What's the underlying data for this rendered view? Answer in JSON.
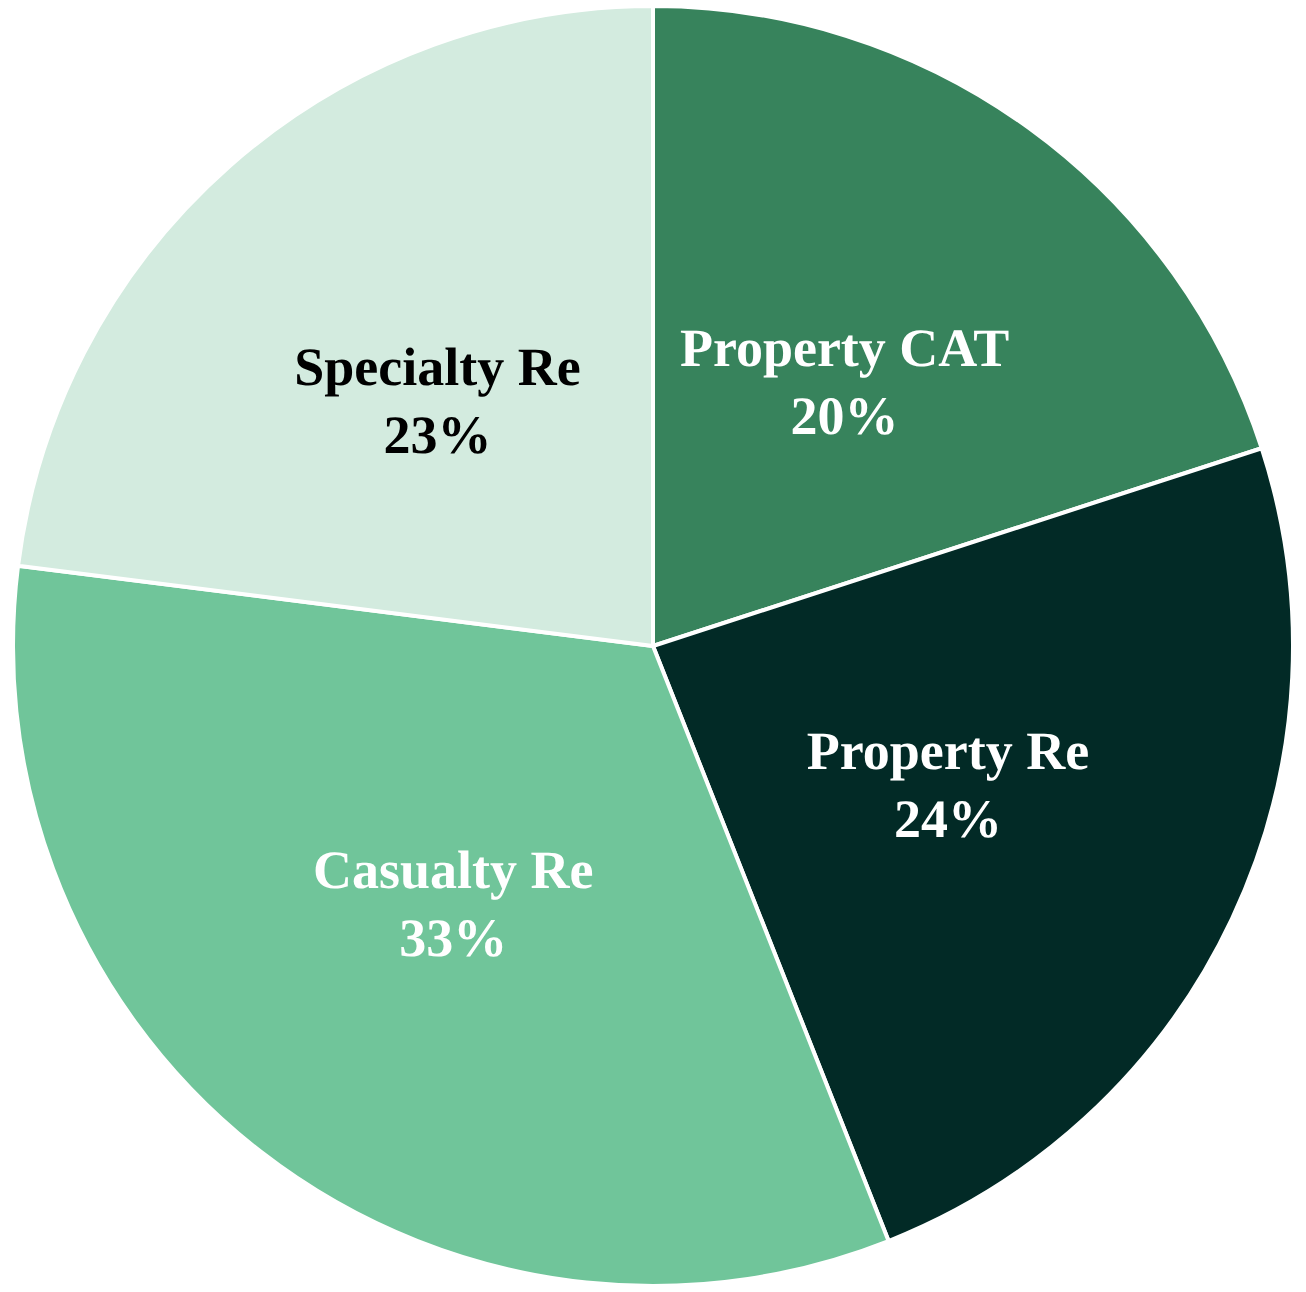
{
  "chart_data": {
    "type": "pie",
    "categories": [
      "Property CAT",
      "Property Re",
      "Casualty Re",
      "Specialty Re"
    ],
    "values": [
      20,
      24,
      33,
      23
    ],
    "colors": [
      "#37835c",
      "#022a26",
      "#70c59a",
      "#d3ebdf"
    ],
    "value_labels": [
      "20%",
      "24%",
      "33%",
      "23%"
    ],
    "legend": false
  }
}
